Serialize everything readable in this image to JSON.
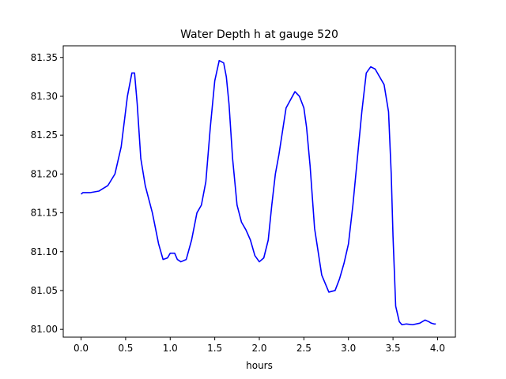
{
  "chart_data": {
    "type": "line",
    "title": "Water Depth h at gauge 520",
    "xlabel": "hours",
    "ylabel": "",
    "xlim": [
      -0.2,
      4.2
    ],
    "ylim": [
      80.99,
      81.365
    ],
    "xticks": [
      0.0,
      0.5,
      1.0,
      1.5,
      2.0,
      2.5,
      3.0,
      3.5,
      4.0
    ],
    "xtick_labels": [
      "0.0",
      "0.5",
      "1.0",
      "1.5",
      "2.0",
      "2.5",
      "3.0",
      "3.5",
      "4.0"
    ],
    "yticks": [
      81.0,
      81.05,
      81.1,
      81.15,
      81.2,
      81.25,
      81.3,
      81.35
    ],
    "ytick_labels": [
      "81.00",
      "81.05",
      "81.10",
      "81.15",
      "81.20",
      "81.25",
      "81.30",
      "81.35"
    ],
    "grid": false,
    "legend": "none",
    "series": [
      {
        "color": "#0000ff",
        "x": [
          0.0,
          0.02,
          0.1,
          0.2,
          0.3,
          0.38,
          0.45,
          0.52,
          0.57,
          0.6,
          0.63,
          0.67,
          0.72,
          0.8,
          0.87,
          0.92,
          0.97,
          1.0,
          1.05,
          1.08,
          1.12,
          1.18,
          1.24,
          1.3,
          1.35,
          1.4,
          1.45,
          1.5,
          1.55,
          1.6,
          1.63,
          1.66,
          1.7,
          1.75,
          1.8,
          1.85,
          1.9,
          1.95,
          2.0,
          2.05,
          2.1,
          2.14,
          2.18,
          2.22,
          2.3,
          2.4,
          2.45,
          2.5,
          2.53,
          2.57,
          2.62,
          2.7,
          2.78,
          2.85,
          2.9,
          2.95,
          3.0,
          3.05,
          3.1,
          3.15,
          3.2,
          3.25,
          3.3,
          3.35,
          3.4,
          3.45,
          3.48,
          3.5,
          3.53,
          3.57,
          3.6,
          3.65,
          3.72,
          3.8,
          3.86,
          3.9,
          3.93,
          3.96,
          3.98
        ],
        "y": [
          81.174,
          81.176,
          81.176,
          81.178,
          81.185,
          81.2,
          81.235,
          81.3,
          81.33,
          81.33,
          81.29,
          81.22,
          81.185,
          81.15,
          81.11,
          81.09,
          81.092,
          81.098,
          81.098,
          81.09,
          81.087,
          81.09,
          81.115,
          81.15,
          81.16,
          81.19,
          81.26,
          81.32,
          81.346,
          81.343,
          81.325,
          81.29,
          81.22,
          81.16,
          81.138,
          81.128,
          81.115,
          81.095,
          81.087,
          81.092,
          81.115,
          81.16,
          81.2,
          81.225,
          81.285,
          81.306,
          81.3,
          81.285,
          81.26,
          81.21,
          81.13,
          81.07,
          81.048,
          81.05,
          81.065,
          81.085,
          81.11,
          81.16,
          81.22,
          81.28,
          81.33,
          81.338,
          81.335,
          81.325,
          81.315,
          81.28,
          81.2,
          81.12,
          81.03,
          81.01,
          81.006,
          81.007,
          81.006,
          81.008,
          81.012,
          81.01,
          81.008,
          81.007,
          81.007
        ]
      }
    ]
  }
}
